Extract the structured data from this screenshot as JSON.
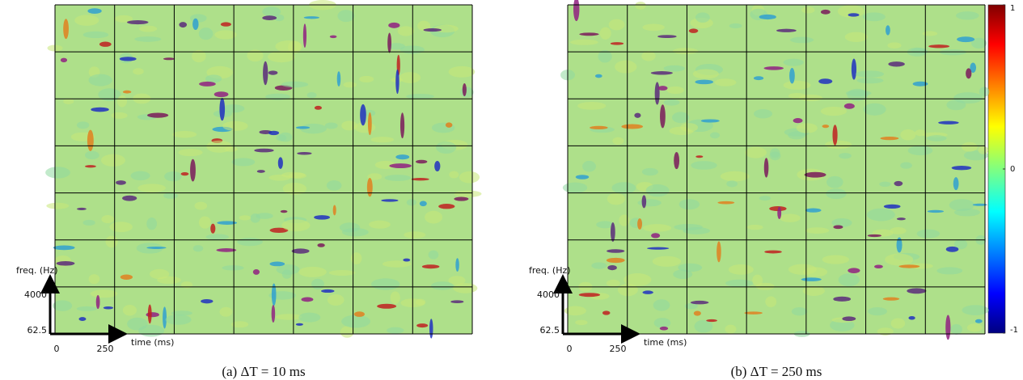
{
  "panels": [
    {
      "caption": "(a) ΔT = 10 ms",
      "axes": {
        "y_label": "freq. (Hz)",
        "y_ticks": [
          "4000",
          "62.5"
        ],
        "x_label": "time (ms)",
        "x_ticks": [
          "0",
          "250"
        ]
      }
    },
    {
      "caption": "(b) ΔT = 250 ms",
      "axes": {
        "y_label": "freq. (Hz)",
        "y_ticks": [
          "4000",
          "62.5"
        ],
        "x_label": "time (ms)",
        "x_ticks": [
          "0",
          "250"
        ]
      }
    }
  ],
  "colorbar": {
    "lim": [
      -1,
      1
    ],
    "ticks": [
      1,
      0,
      -1
    ]
  }
}
